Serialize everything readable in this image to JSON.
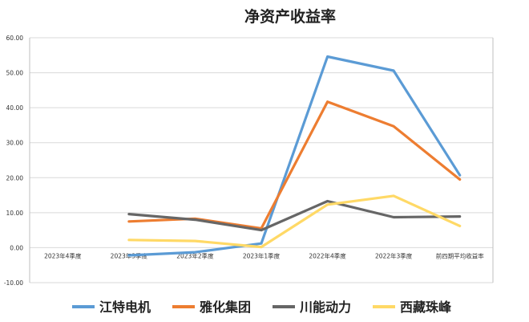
{
  "chart_data": {
    "type": "line",
    "title": "净资产收益率",
    "categories": [
      "2023年4季度",
      "2023年3季度",
      "2023年2季度",
      "2023年1季度",
      "2022年4季度",
      "2022年3季度",
      "前四期平均收益率"
    ],
    "ylim": [
      -10,
      60
    ],
    "yticks": [
      "-10.00",
      "0.00",
      "10.00",
      "20.00",
      "30.00",
      "40.00",
      "50.00",
      "60.00"
    ],
    "grid": true,
    "legend": "bottom",
    "series": [
      {
        "name": "江特电机",
        "color": "#5b9bd5",
        "values": [
          null,
          -2.2,
          -1.3,
          1.2,
          54.6,
          50.6,
          20.7
        ]
      },
      {
        "name": "雅化集团",
        "color": "#ed7d31",
        "values": [
          null,
          7.5,
          8.3,
          5.5,
          41.7,
          34.7,
          19.5
        ]
      },
      {
        "name": "川能动力",
        "color": "#666666",
        "values": [
          null,
          9.6,
          8.0,
          5.0,
          13.3,
          8.7,
          8.9
        ]
      },
      {
        "name": "西藏珠峰",
        "color": "#ffd966",
        "values": [
          null,
          2.2,
          1.9,
          0.2,
          12.3,
          14.8,
          6.2
        ]
      }
    ]
  }
}
